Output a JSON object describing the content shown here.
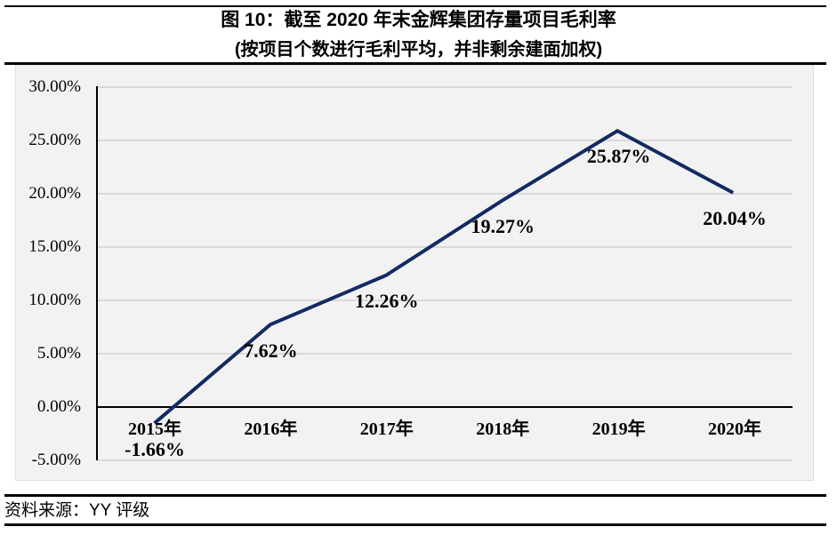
{
  "figure": {
    "title": "图 10：截至 2020 年末金辉集团存量项目毛利率",
    "subtitle": "(按项目个数进行毛利平均，并非剩余建面加权)",
    "source_note": "资料来源：YY 评级"
  },
  "chart_data": {
    "type": "line",
    "title": "图 10：截至 2020 年末金辉集团存量项目毛利率",
    "subtitle": "(按项目个数进行毛利平均，并非剩余建面加权)",
    "categories": [
      "2015年",
      "2016年",
      "2017年",
      "2018年",
      "2019年",
      "2020年"
    ],
    "series": [
      {
        "name": "存量项目毛利率",
        "values": [
          -1.66,
          7.62,
          12.26,
          19.27,
          25.87,
          20.04
        ],
        "data_labels": [
          "-1.66%",
          "7.62%",
          "12.26%",
          "19.27%",
          "25.87%",
          "20.04%"
        ]
      }
    ],
    "xlabel": "",
    "ylabel": "",
    "y_ticks": [
      "30.00%",
      "25.00%",
      "20.00%",
      "15.00%",
      "10.00%",
      "5.00%",
      "0.00%",
      "-5.00%"
    ],
    "y_tick_values": [
      30,
      25,
      20,
      15,
      10,
      5,
      0,
      -5
    ],
    "ylim": [
      -5,
      30
    ],
    "grid": true,
    "legend_position": "none",
    "line_color": "#122b61",
    "plot_background": "#f2f2f2",
    "gridline_color": "#d9d9d9",
    "axis_color": "#000000"
  }
}
